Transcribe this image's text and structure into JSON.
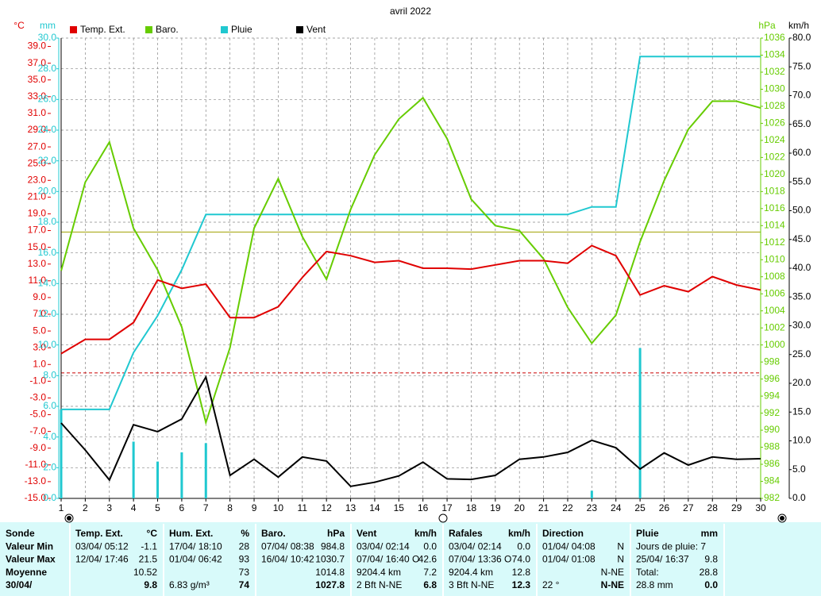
{
  "chart_data": {
    "type": "line",
    "title": "avril 2022",
    "x": [
      1,
      2,
      3,
      4,
      5,
      6,
      7,
      8,
      9,
      10,
      11,
      12,
      13,
      14,
      15,
      16,
      17,
      18,
      19,
      20,
      21,
      22,
      23,
      24,
      25,
      26,
      27,
      28,
      29,
      30
    ],
    "xlim": [
      1,
      30
    ],
    "xticks": [
      1,
      2,
      3,
      4,
      5,
      6,
      7,
      8,
      9,
      10,
      11,
      12,
      13,
      14,
      15,
      16,
      17,
      18,
      19,
      20,
      21,
      22,
      23,
      24,
      25,
      26,
      27,
      28,
      29,
      30
    ],
    "y_unit": "°C",
    "ylim": [
      -15,
      40
    ],
    "yticks": [
      {
        "value": -15,
        "label": "-15.0"
      },
      {
        "value": -13,
        "label": "-13.0"
      },
      {
        "value": -11,
        "label": "-11.0"
      },
      {
        "value": -9,
        "label": "-9.0"
      },
      {
        "value": -7,
        "label": "-7.0"
      },
      {
        "value": -5,
        "label": "-5.0"
      },
      {
        "value": -3,
        "label": "-3.0"
      },
      {
        "value": -1,
        "label": "-1.0"
      },
      {
        "value": 1,
        "label": "1.0"
      },
      {
        "value": 3,
        "label": "3.0"
      },
      {
        "value": 5,
        "label": "5.0"
      },
      {
        "value": 7,
        "label": "7.0"
      },
      {
        "value": 9,
        "label": "9.0"
      },
      {
        "value": 11,
        "label": "11.0"
      },
      {
        "value": 13,
        "label": "13.0"
      },
      {
        "value": 15,
        "label": "15.0"
      },
      {
        "value": 17,
        "label": "17.0"
      },
      {
        "value": 19,
        "label": "19.0"
      },
      {
        "value": 21,
        "label": "21.0"
      },
      {
        "value": 23,
        "label": "23.0"
      },
      {
        "value": 25,
        "label": "25.0"
      },
      {
        "value": 27,
        "label": "27.0"
      },
      {
        "value": 29,
        "label": "29.0"
      },
      {
        "value": 31,
        "label": "31.0"
      },
      {
        "value": 33,
        "label": "33.0"
      },
      {
        "value": 35,
        "label": "35.0"
      },
      {
        "value": 37,
        "label": "37.0"
      },
      {
        "value": 39,
        "label": "39.0"
      }
    ],
    "y2_unit": "hPa",
    "y2lim": [
      982,
      1036
    ],
    "y2ticks": [
      982,
      984,
      986,
      988,
      990,
      992,
      994,
      996,
      998,
      1000,
      1002,
      1004,
      1006,
      1008,
      1010,
      1012,
      1014,
      1016,
      1018,
      1020,
      1022,
      1024,
      1026,
      1028,
      1030,
      1032,
      1034,
      1036
    ],
    "y3_unit": "mm",
    "y3lim": [
      0,
      30
    ],
    "y3ticks": [
      {
        "value": 0,
        "label": "0.0"
      },
      {
        "value": 2,
        "label": "2.0"
      },
      {
        "value": 4,
        "label": "4.0"
      },
      {
        "value": 6,
        "label": "6.0"
      },
      {
        "value": 8,
        "label": "8.0"
      },
      {
        "value": 10,
        "label": "10.0"
      },
      {
        "value": 12,
        "label": "12.0"
      },
      {
        "value": 14,
        "label": "14.0"
      },
      {
        "value": 16,
        "label": "16.0"
      },
      {
        "value": 18,
        "label": "18.0"
      },
      {
        "value": 20,
        "label": "20.0"
      },
      {
        "value": 22,
        "label": "22.0"
      },
      {
        "value": 24,
        "label": "24.0"
      },
      {
        "value": 26,
        "label": "26.0"
      },
      {
        "value": 28,
        "label": "28.0"
      },
      {
        "value": 30,
        "label": "30.0"
      }
    ],
    "y4_unit": "km/h",
    "y4lim": [
      0,
      80
    ],
    "y4ticks": [
      {
        "value": 0,
        "label": "0.0"
      },
      {
        "value": 5,
        "label": "5.0"
      },
      {
        "value": 10,
        "label": "10.0"
      },
      {
        "value": 15,
        "label": "15.0"
      },
      {
        "value": 20,
        "label": "20.0"
      },
      {
        "value": 25,
        "label": "25.0"
      },
      {
        "value": 30,
        "label": "30.0"
      },
      {
        "value": 35,
        "label": "35.0"
      },
      {
        "value": 40,
        "label": "40.0"
      },
      {
        "value": 45,
        "label": "45.0"
      },
      {
        "value": 50,
        "label": "50.0"
      },
      {
        "value": 55,
        "label": "55.0"
      },
      {
        "value": 60,
        "label": "60.0"
      },
      {
        "value": 65,
        "label": "65.0"
      },
      {
        "value": 70,
        "label": "70.0"
      },
      {
        "value": 75,
        "label": "75.0"
      },
      {
        "value": 80,
        "label": "80.0"
      }
    ],
    "grid": true,
    "series": [
      {
        "name": "Temp. Ext.",
        "color": "#e00000",
        "axis": "y",
        "values": [
          2.3,
          4.0,
          4.0,
          6.0,
          11.1,
          10.1,
          10.6,
          6.6,
          6.6,
          7.9,
          11.4,
          14.5,
          14.0,
          13.2,
          13.4,
          12.5,
          12.5,
          12.4,
          12.9,
          13.4,
          13.4,
          13.1,
          15.2,
          14.0,
          9.3,
          10.4,
          9.7,
          11.5,
          10.5,
          9.9
        ]
      },
      {
        "name": "Baro.",
        "color": "#66cc00",
        "axis": "y2",
        "values": [
          1008.7,
          1019.1,
          1023.8,
          1013.7,
          1008.8,
          1002.1,
          990.9,
          999.7,
          1013.7,
          1019.5,
          1012.7,
          1007.7,
          1015.9,
          1022.3,
          1026.5,
          1029.0,
          1024.2,
          1017.1,
          1014.0,
          1013.4,
          1010.1,
          1004.4,
          1000.2,
          1003.5,
          1012.1,
          1019.3,
          1025.3,
          1028.6,
          1028.6,
          1027.8
        ]
      },
      {
        "name": "Pluie",
        "color": "#20c8d0",
        "axis": "y3",
        "values": [
          5.8,
          5.8,
          5.8,
          9.5,
          11.9,
          14.9,
          18.5,
          18.5,
          18.5,
          18.5,
          18.5,
          18.5,
          18.5,
          18.5,
          18.5,
          18.5,
          18.5,
          18.5,
          18.5,
          18.5,
          18.5,
          18.5,
          19.0,
          19.0,
          28.8,
          28.8,
          28.8,
          28.8,
          28.8,
          28.8
        ]
      },
      {
        "name": "Vent",
        "color": "#000000",
        "axis": "y4",
        "values": [
          13.1,
          8.4,
          3.2,
          12.8,
          11.6,
          13.8,
          21.1,
          4.0,
          6.8,
          3.7,
          7.2,
          6.5,
          2.1,
          2.8,
          3.9,
          6.3,
          3.4,
          3.3,
          4.0,
          6.8,
          7.2,
          8.0,
          10.1,
          8.8,
          5.1,
          7.9,
          5.8,
          7.2,
          6.8,
          6.9
        ]
      }
    ],
    "rain_bars": {
      "color": "#20c8d0",
      "axis": "y3",
      "values": [
        5.8,
        0,
        0,
        3.7,
        2.4,
        3.0,
        3.6,
        0,
        0,
        0,
        0,
        0,
        0,
        0,
        0,
        0,
        0,
        0,
        0,
        0,
        0,
        0,
        0.5,
        0,
        9.8,
        0,
        0,
        0,
        0,
        0
      ]
    },
    "ref_lines": [
      {
        "axis": "y",
        "value": 0,
        "color": "#cc0000"
      },
      {
        "axis": "y2",
        "value": 1013.25,
        "color": "#a0a000"
      }
    ]
  },
  "table": {
    "rows": [
      [
        {
          "l": "Sonde"
        },
        {
          "l": "Temp. Ext.",
          "r": "°C"
        },
        {
          "l": "Hum. Ext.",
          "r": "%"
        },
        {
          "l": "Baro.",
          "r": "hPa"
        },
        {
          "l": "Vent",
          "r": "km/h"
        },
        {
          "l": "Rafales",
          "r": "km/h"
        },
        {
          "l": "Direction"
        },
        {
          "l": "Pluie",
          "r": "mm"
        }
      ],
      [
        {
          "l": "Valeur Min"
        },
        {
          "l": "03/04/ 05:12",
          "r": "-1.1"
        },
        {
          "l": "17/04/ 18:10",
          "r": "28"
        },
        {
          "l": "07/04/ 08:38",
          "r": "984.8"
        },
        {
          "l": "03/04/ 02:14",
          "r": "0.0"
        },
        {
          "l": "03/04/ 02:14",
          "r": "0.0"
        },
        {
          "l": "01/04/ 04:08",
          "r": "N"
        },
        {
          "l": "Jours de pluie: 7"
        }
      ],
      [
        {
          "l": "Valeur Max"
        },
        {
          "l": "12/04/ 17:46",
          "r": "21.5"
        },
        {
          "l": "01/04/ 06:42",
          "r": "93"
        },
        {
          "l": "16/04/ 10:42",
          "r": "1030.7"
        },
        {
          "l": "07/04/ 16:40 O",
          "r": "42.6"
        },
        {
          "l": "07/04/ 13:36 O",
          "r": "74.0"
        },
        {
          "l": "01/04/ 01:08",
          "r": "N"
        },
        {
          "l": "25/04/ 16:37",
          "r": "9.8"
        }
      ],
      [
        {
          "l": "Moyenne"
        },
        {
          "r": "10.52"
        },
        {
          "r": "73"
        },
        {
          "r": "1014.8"
        },
        {
          "l": "9204.4 km",
          "r": "7.2"
        },
        {
          "l": "9204.4 km",
          "r": "12.8"
        },
        {
          "r": "N-NE"
        },
        {
          "l": "Total:",
          "r": "28.8"
        }
      ],
      [
        {
          "l": "30/04/"
        },
        {
          "r": "9.8"
        },
        {
          "l": "6.83 g/m³",
          "r": "74"
        },
        {
          "r": "1027.8"
        },
        {
          "l": "2 Bft N-NE",
          "r": "6.8"
        },
        {
          "l": "3 Bft N-NE",
          "r": "12.3"
        },
        {
          "l": "22 °",
          "r": "N-NE"
        },
        {
          "l": "28.8 mm",
          "r": "0.0"
        }
      ]
    ]
  }
}
